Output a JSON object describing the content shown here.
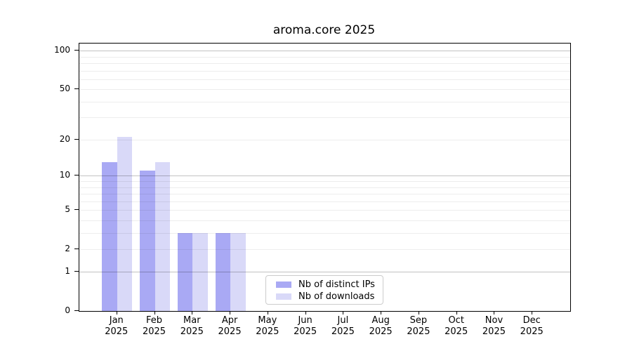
{
  "chart_data": {
    "type": "bar",
    "title": "aroma.core 2025",
    "categories": [
      "Jan",
      "Feb",
      "Mar",
      "Apr",
      "May",
      "Jun",
      "Jul",
      "Aug",
      "Sep",
      "Oct",
      "Nov",
      "Dec"
    ],
    "category_year": "2025",
    "series": [
      {
        "name": "Nb of distinct IPs",
        "color": "#a9a9f4",
        "values": [
          13,
          11,
          3,
          3,
          0,
          0,
          0,
          0,
          0,
          0,
          0,
          0
        ]
      },
      {
        "name": "Nb of downloads",
        "color": "#d9d9f8",
        "values": [
          21,
          13,
          3,
          3,
          0,
          0,
          0,
          0,
          0,
          0,
          0,
          0
        ]
      }
    ],
    "xlabel": "",
    "ylabel": "",
    "yscale": "log1p",
    "ylim": [
      0,
      114
    ],
    "yticks": [
      0,
      1,
      2,
      5,
      10,
      20,
      50,
      100
    ],
    "grid": "horizontal",
    "grid_major_values": [
      1,
      10,
      100
    ],
    "grid_minor_values": [
      2,
      3,
      4,
      5,
      6,
      7,
      8,
      9,
      20,
      30,
      40,
      50,
      60,
      70,
      80,
      90
    ],
    "legend_position": "lower center"
  },
  "colors": {
    "background": "#ffffff",
    "spine": "#000000",
    "text": "#000000",
    "legend_border": "#cccccc"
  }
}
